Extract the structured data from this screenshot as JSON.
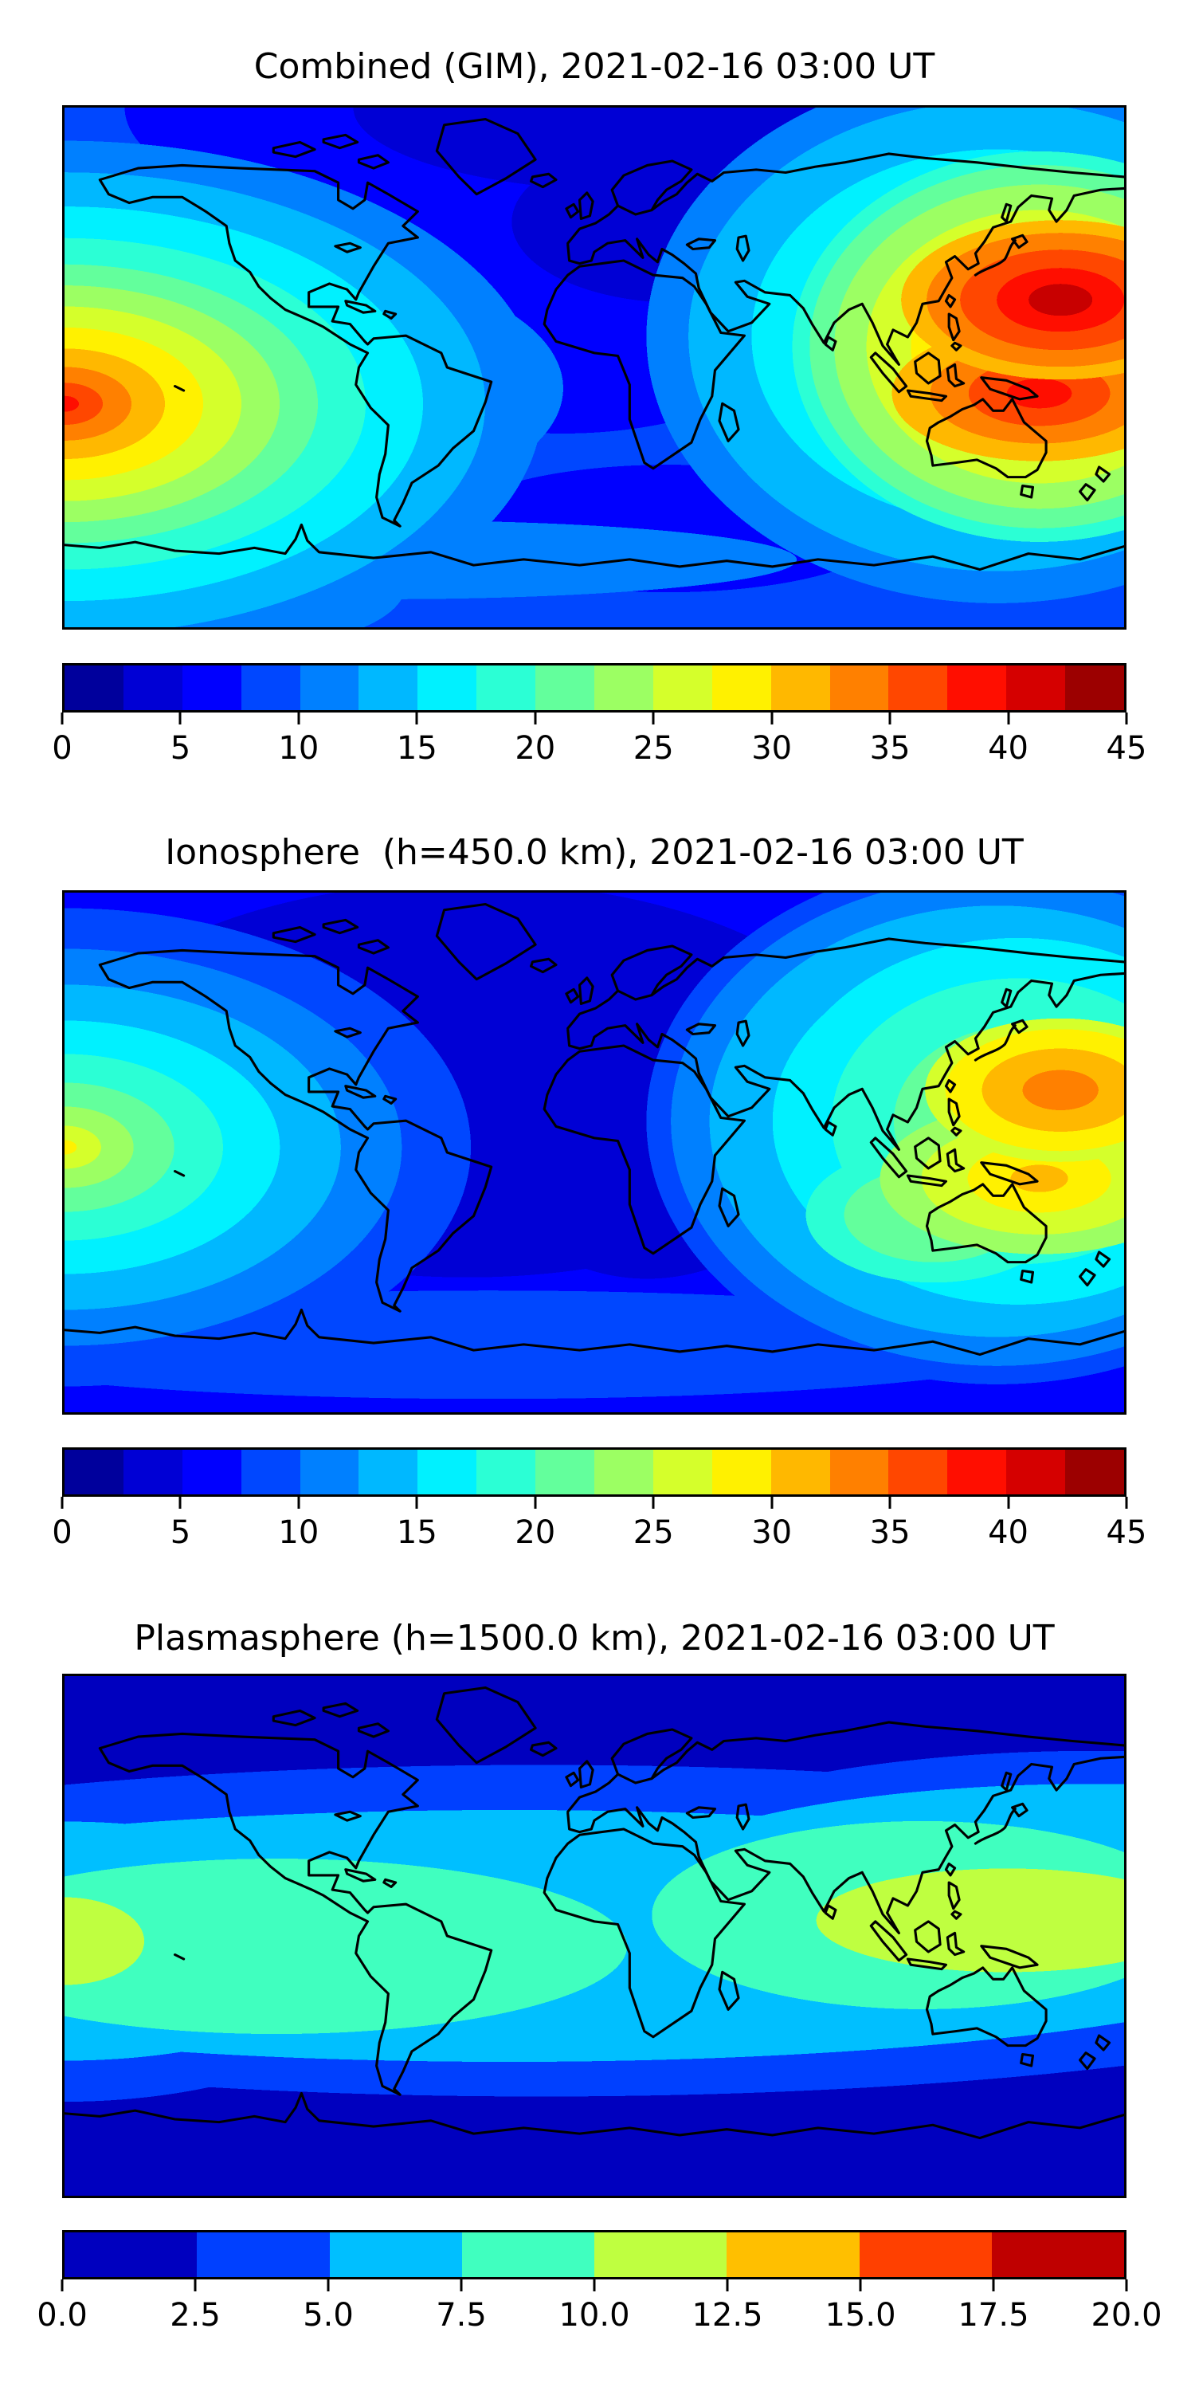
{
  "panels": [
    {
      "title": "Combined (GIM), 2021-02-16 03:00 UT",
      "colorbar": {
        "ticks": [
          "0",
          "5",
          "10",
          "15",
          "20",
          "25",
          "30",
          "35",
          "40",
          "45"
        ],
        "colors": [
          "#00009C",
          "#0000D5",
          "#0000FF",
          "#0047FF",
          "#0080FF",
          "#00B8FF",
          "#00F1FF",
          "#2BFFD5",
          "#63FF9C",
          "#9CFF63",
          "#D5FF2B",
          "#FFF100",
          "#FFB800",
          "#FF8000",
          "#FF4700",
          "#FF0E00",
          "#D50000",
          "#9C0000"
        ]
      }
    },
    {
      "title": "Ionosphere  (h=450.0 km), 2021-02-16 03:00 UT",
      "colorbar": {
        "ticks": [
          "0",
          "5",
          "10",
          "15",
          "20",
          "25",
          "30",
          "35",
          "40",
          "45"
        ],
        "colors": [
          "#00009C",
          "#0000D5",
          "#0000FF",
          "#0047FF",
          "#0080FF",
          "#00B8FF",
          "#00F1FF",
          "#2BFFD5",
          "#63FF9C",
          "#9CFF63",
          "#D5FF2B",
          "#FFF100",
          "#FFB800",
          "#FF8000",
          "#FF4700",
          "#FF0E00",
          "#D50000",
          "#9C0000"
        ]
      }
    },
    {
      "title": "Plasmasphere (h=1500.0 km), 2021-02-16 03:00 UT",
      "colorbar": {
        "ticks": [
          "0.0",
          "2.5",
          "5.0",
          "7.5",
          "10.0",
          "12.5",
          "15.0",
          "17.5",
          "20.0"
        ],
        "colors": [
          "#0000BF",
          "#0040FF",
          "#00BFFF",
          "#40FFBF",
          "#BFFF40",
          "#FFBF00",
          "#FF4000",
          "#BF0000"
        ]
      }
    }
  ],
  "chart_data": [
    {
      "type": "heatmap",
      "subtype": "filled-contour world map (equirectangular, coastlines overlaid)",
      "title": "Combined (GIM), 2021-02-16 03:00 UT",
      "colormap": "jet (discrete)",
      "value_range": [
        0,
        45
      ],
      "levels": [
        0,
        2.5,
        5,
        7.5,
        10,
        12.5,
        15,
        17.5,
        20,
        22.5,
        25,
        27.5,
        30,
        32.5,
        35,
        37.5,
        40,
        42.5,
        45
      ],
      "colorbar_ticks": [
        0,
        5,
        10,
        15,
        20,
        25,
        30,
        35,
        40,
        45
      ],
      "lon_range": [
        -180,
        180
      ],
      "lat_range": [
        -90,
        90
      ],
      "features": [
        {
          "name": "western-pacific-max",
          "lon_deg": 160,
          "lat_deg": 23,
          "approx_value": 45
        },
        {
          "name": "new-guinea-coral-sea-max",
          "lon_deg": 150,
          "lat_deg": -10,
          "approx_value": 41
        },
        {
          "name": "east-pacific-left-edge-max",
          "lon_deg": -180,
          "lat_deg": -13,
          "approx_value": 39
        },
        {
          "name": "arctic-north-america-minimum",
          "lon_deg": -80,
          "lat_deg": 60,
          "approx_value": 3
        },
        {
          "name": "background-ocean",
          "approx_value": 8
        }
      ]
    },
    {
      "type": "heatmap",
      "subtype": "filled-contour world map (equirectangular, coastlines overlaid)",
      "title": "Ionosphere  (h=450.0 km), 2021-02-16 03:00 UT",
      "colormap": "jet (discrete)",
      "value_range": [
        0,
        45
      ],
      "levels": [
        0,
        2.5,
        5,
        7.5,
        10,
        12.5,
        15,
        17.5,
        20,
        22.5,
        25,
        27.5,
        30,
        32.5,
        35,
        37.5,
        40,
        42.5,
        45
      ],
      "colorbar_ticks": [
        0,
        5,
        10,
        15,
        20,
        25,
        30,
        35,
        40,
        45
      ],
      "lon_range": [
        -180,
        180
      ],
      "lat_range": [
        -90,
        90
      ],
      "features": [
        {
          "name": "western-pacific-max",
          "lon_deg": 158,
          "lat_deg": 22,
          "approx_value": 34
        },
        {
          "name": "new-guinea-coral-sea-max",
          "lon_deg": 152,
          "lat_deg": -10,
          "approx_value": 33
        },
        {
          "name": "east-pacific-left-edge-max",
          "lon_deg": -180,
          "lat_deg": -8,
          "approx_value": 28
        },
        {
          "name": "americas-africa-minimum",
          "lon_deg": -60,
          "lat_deg": 25,
          "approx_value": 3
        },
        {
          "name": "background-ocean",
          "approx_value": 5
        }
      ]
    },
    {
      "type": "heatmap",
      "subtype": "filled-contour world map (equirectangular, coastlines overlaid)",
      "title": "Plasmasphere (h=1500.0 km), 2021-02-16 03:00 UT",
      "colormap": "jet (discrete)",
      "value_range": [
        0,
        20
      ],
      "levels": [
        0,
        2.5,
        5,
        7.5,
        10,
        12.5,
        15,
        17.5,
        20
      ],
      "colorbar_ticks": [
        0.0,
        2.5,
        5.0,
        7.5,
        10.0,
        12.5,
        15.0,
        17.5,
        20.0
      ],
      "lon_range": [
        -180,
        180
      ],
      "lat_range": [
        -90,
        90
      ],
      "features": [
        {
          "name": "equatorial-band",
          "lat_deg": 0,
          "approx_value": 9
        },
        {
          "name": "west-pacific-philippines-max",
          "lon_deg": 140,
          "lat_deg": 5,
          "approx_value": 11.5
        },
        {
          "name": "left-edge-equator-max",
          "lon_deg": -180,
          "lat_deg": -2,
          "approx_value": 11
        },
        {
          "name": "polar-minimum",
          "lat_deg": 75,
          "approx_value": 1.5
        }
      ]
    }
  ]
}
